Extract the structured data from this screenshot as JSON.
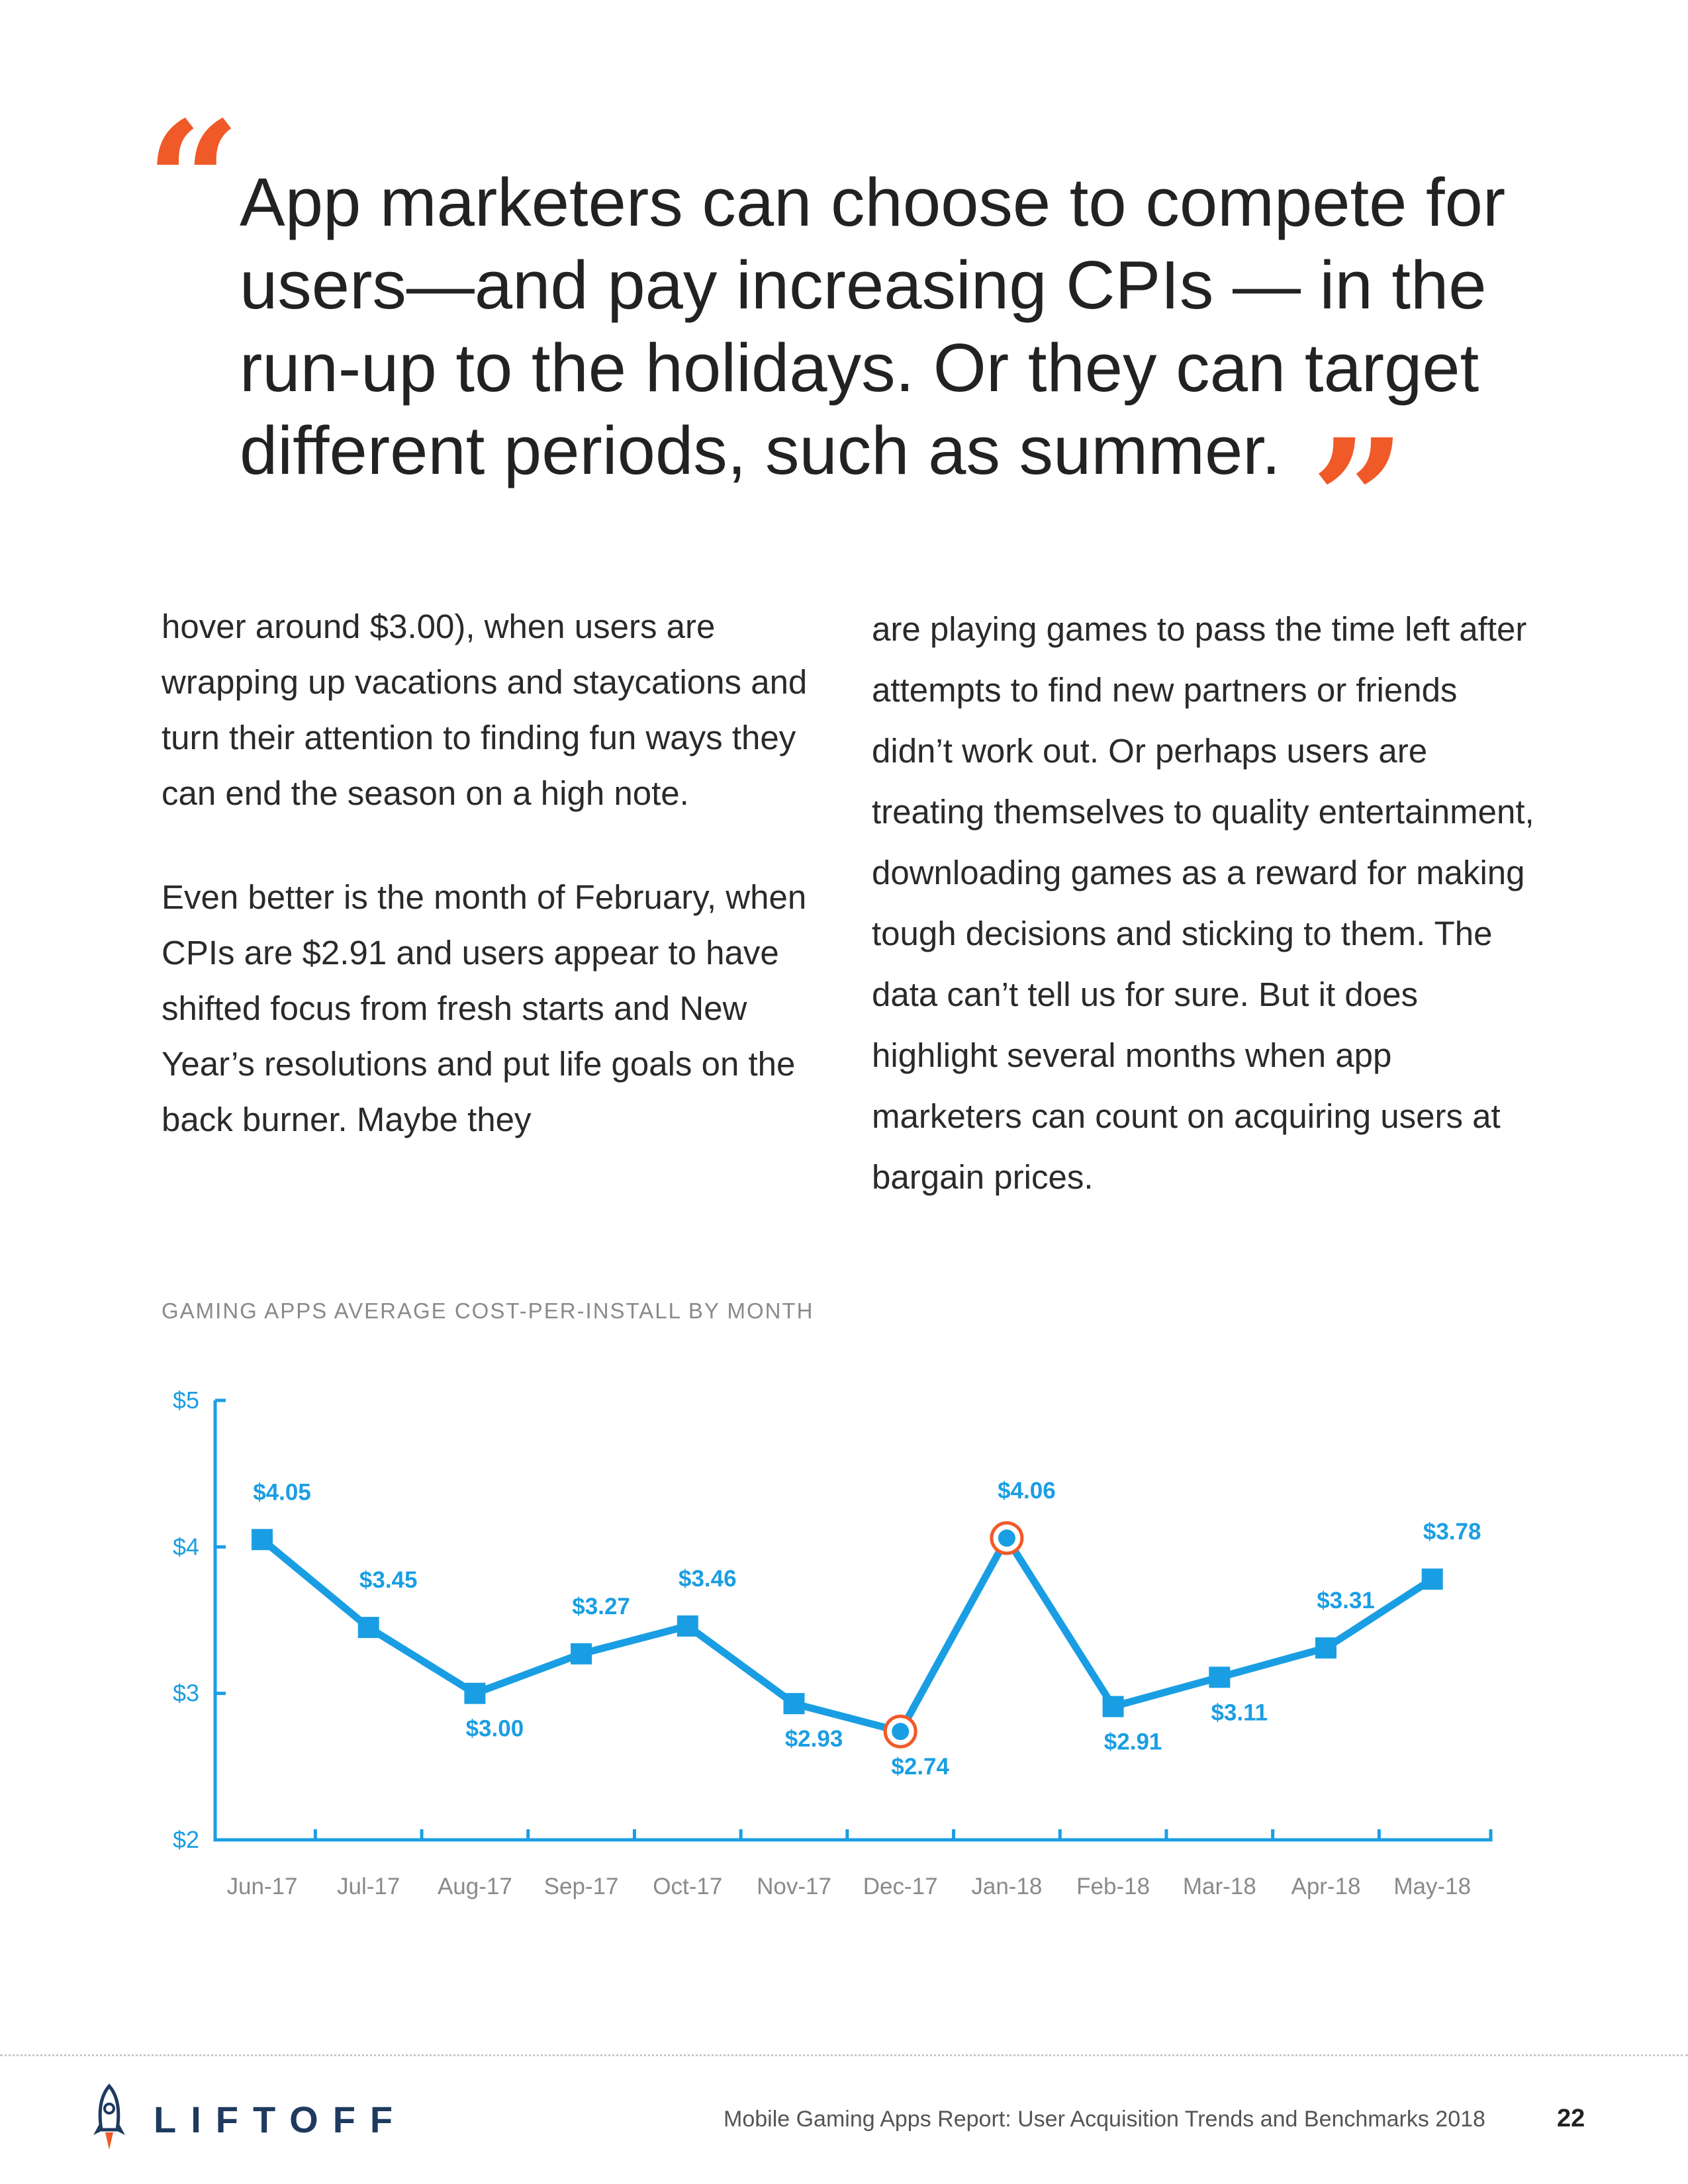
{
  "quote": {
    "open_mark": "“",
    "text": "App marketers can choose to compete for users—and pay increasing CPIs — in the run-up to the holidays. Or they can target different periods, such as summer.",
    "close_mark": "”"
  },
  "body": {
    "left_paragraphs": [
      "hover around $3.00), when users are wrapping up vacations and staycations and turn their attention to finding fun ways they can end the season on a high note.",
      "Even better is the month of February, when CPIs are $2.91 and users appear to have shifted focus from fresh starts and New Year’s resolutions and put life goals on the back burner. Maybe they"
    ],
    "right_paragraph": "are playing games to pass the time left after attempts to find new partners or friends didn’t work out. Or perhaps users are treating themselves to quality entertainment, downloading games as a reward for making tough decisions and sticking to them. The data can’t tell us for sure. But it does highlight several months when app marketers can count on acquiring users at bargain prices."
  },
  "chart_data": {
    "type": "line",
    "title": "GAMING APPS AVERAGE COST-PER-INSTALL BY MONTH",
    "categories": [
      "Jun-17",
      "Jul-17",
      "Aug-17",
      "Sep-17",
      "Oct-17",
      "Nov-17",
      "Dec-17",
      "Jan-18",
      "Feb-18",
      "Mar-18",
      "Apr-18",
      "May-18"
    ],
    "values": [
      4.05,
      3.45,
      3.0,
      3.27,
      3.46,
      2.93,
      2.74,
      4.06,
      2.91,
      3.11,
      3.31,
      3.78
    ],
    "value_labels": [
      "$4.05",
      "$3.45",
      "$3.00",
      "$3.27",
      "$3.46",
      "$2.93",
      "$2.74",
      "$4.06",
      "$2.91",
      "$3.11",
      "$3.31",
      "$3.78"
    ],
    "label_position": [
      "above",
      "above",
      "below",
      "above",
      "above",
      "below",
      "below",
      "above",
      "below",
      "below",
      "above",
      "above"
    ],
    "highlighted": [
      "Dec-17",
      "Jan-18"
    ],
    "ylim": [
      2,
      5
    ],
    "yticks": [
      2,
      3,
      4,
      5
    ],
    "ytick_labels": [
      "$2",
      "$3",
      "$4",
      "$5"
    ],
    "xlabel": "",
    "ylabel": "",
    "grid": false,
    "legend": "none",
    "colors": {
      "line": "#1a9ee3",
      "highlight_ring": "#f05a28"
    }
  },
  "footer": {
    "logo_text": "LIFTOFF",
    "report_title": "Mobile Gaming Apps Report: User Acquisition Trends and Benchmarks 2018",
    "page_number": "22"
  },
  "colors": {
    "accent": "#f05a28",
    "chart_blue": "#1a9ee3",
    "logo_navy": "#1e3a5f"
  },
  "icons": {
    "logo": "rocket-icon"
  }
}
